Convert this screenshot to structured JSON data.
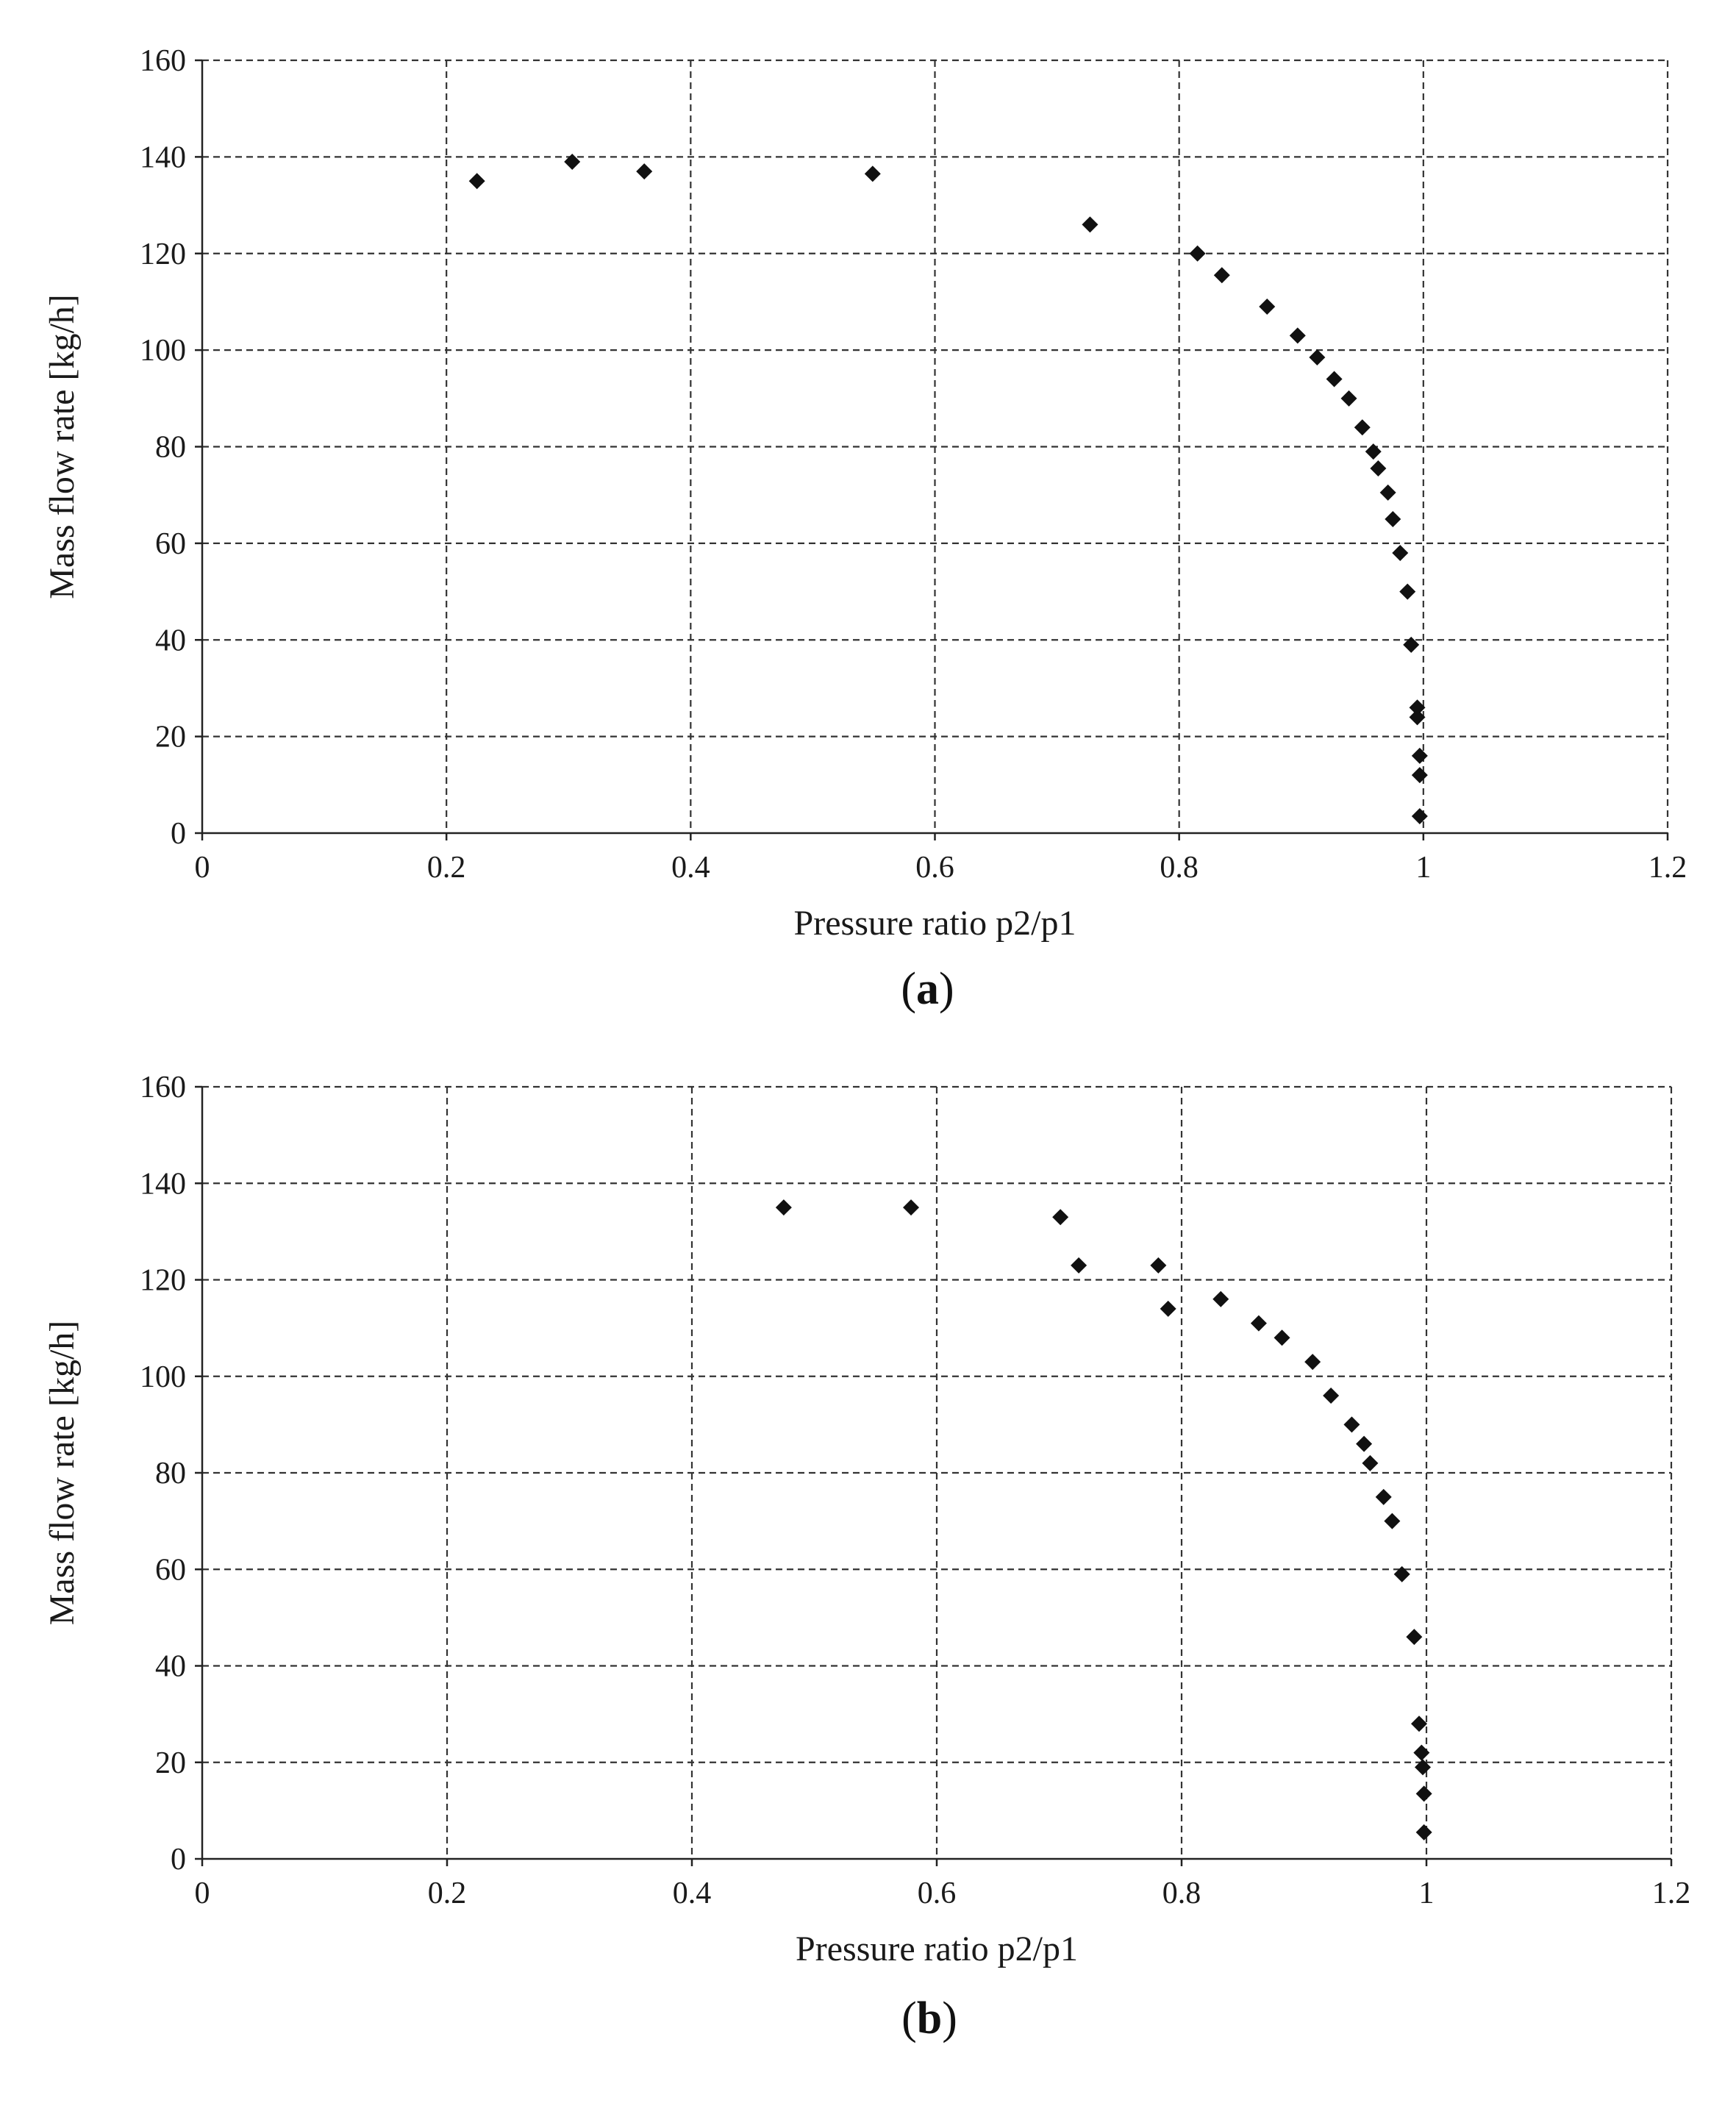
{
  "chart_data": [
    {
      "type": "scatter",
      "panel_label": "(a)",
      "panel_letter": "a",
      "xlabel": "Pressure ratio p2/p1",
      "ylabel": "Mass flow rate [kg/h]",
      "xlim": [
        0,
        1.2
      ],
      "ylim": [
        0,
        160
      ],
      "xticks": [
        "0",
        "0.2",
        "0.4",
        "0.6",
        "0.8",
        "1",
        "1.2"
      ],
      "yticks": [
        "0",
        "20",
        "40",
        "60",
        "80",
        "100",
        "120",
        "140",
        "160"
      ],
      "grid": true,
      "marker": "diamond",
      "marker_color": "#111111",
      "points": [
        [
          0.225,
          135
        ],
        [
          0.303,
          139
        ],
        [
          0.362,
          137
        ],
        [
          0.549,
          136.5
        ],
        [
          0.727,
          126
        ],
        [
          0.815,
          120
        ],
        [
          0.835,
          115.5
        ],
        [
          0.872,
          109
        ],
        [
          0.897,
          103
        ],
        [
          0.913,
          98.5
        ],
        [
          0.927,
          94
        ],
        [
          0.939,
          90
        ],
        [
          0.95,
          84
        ],
        [
          0.959,
          79
        ],
        [
          0.963,
          75.5
        ],
        [
          0.971,
          70.5
        ],
        [
          0.975,
          65
        ],
        [
          0.981,
          58
        ],
        [
          0.987,
          50
        ],
        [
          0.99,
          39
        ],
        [
          0.995,
          26
        ],
        [
          0.995,
          24
        ],
        [
          0.997,
          16
        ],
        [
          0.997,
          12
        ],
        [
          0.997,
          3.5
        ]
      ]
    },
    {
      "type": "scatter",
      "panel_label": "(b)",
      "panel_letter": "b",
      "xlabel": "Pressure ratio p2/p1",
      "ylabel": "Mass flow rate [kg/h]",
      "xlim": [
        0,
        1.2
      ],
      "ylim": [
        0,
        160
      ],
      "xticks": [
        "0",
        "0.2",
        "0.4",
        "0.6",
        "0.8",
        "1",
        "1.2"
      ],
      "yticks": [
        "0",
        "20",
        "40",
        "60",
        "80",
        "100",
        "120",
        "140",
        "160"
      ],
      "grid": true,
      "marker": "diamond",
      "marker_color": "#111111",
      "points": [
        [
          0.475,
          135
        ],
        [
          0.579,
          135
        ],
        [
          0.701,
          133
        ],
        [
          0.716,
          123
        ],
        [
          0.781,
          123
        ],
        [
          0.789,
          114
        ],
        [
          0.832,
          116
        ],
        [
          0.863,
          111
        ],
        [
          0.882,
          108
        ],
        [
          0.907,
          103
        ],
        [
          0.922,
          96
        ],
        [
          0.939,
          90
        ],
        [
          0.949,
          86
        ],
        [
          0.954,
          82
        ],
        [
          0.965,
          75
        ],
        [
          0.972,
          70
        ],
        [
          0.98,
          59
        ],
        [
          0.99,
          46
        ],
        [
          0.994,
          28
        ],
        [
          0.996,
          22
        ],
        [
          0.997,
          19
        ],
        [
          0.998,
          13.5
        ],
        [
          0.998,
          5.5
        ]
      ]
    }
  ]
}
